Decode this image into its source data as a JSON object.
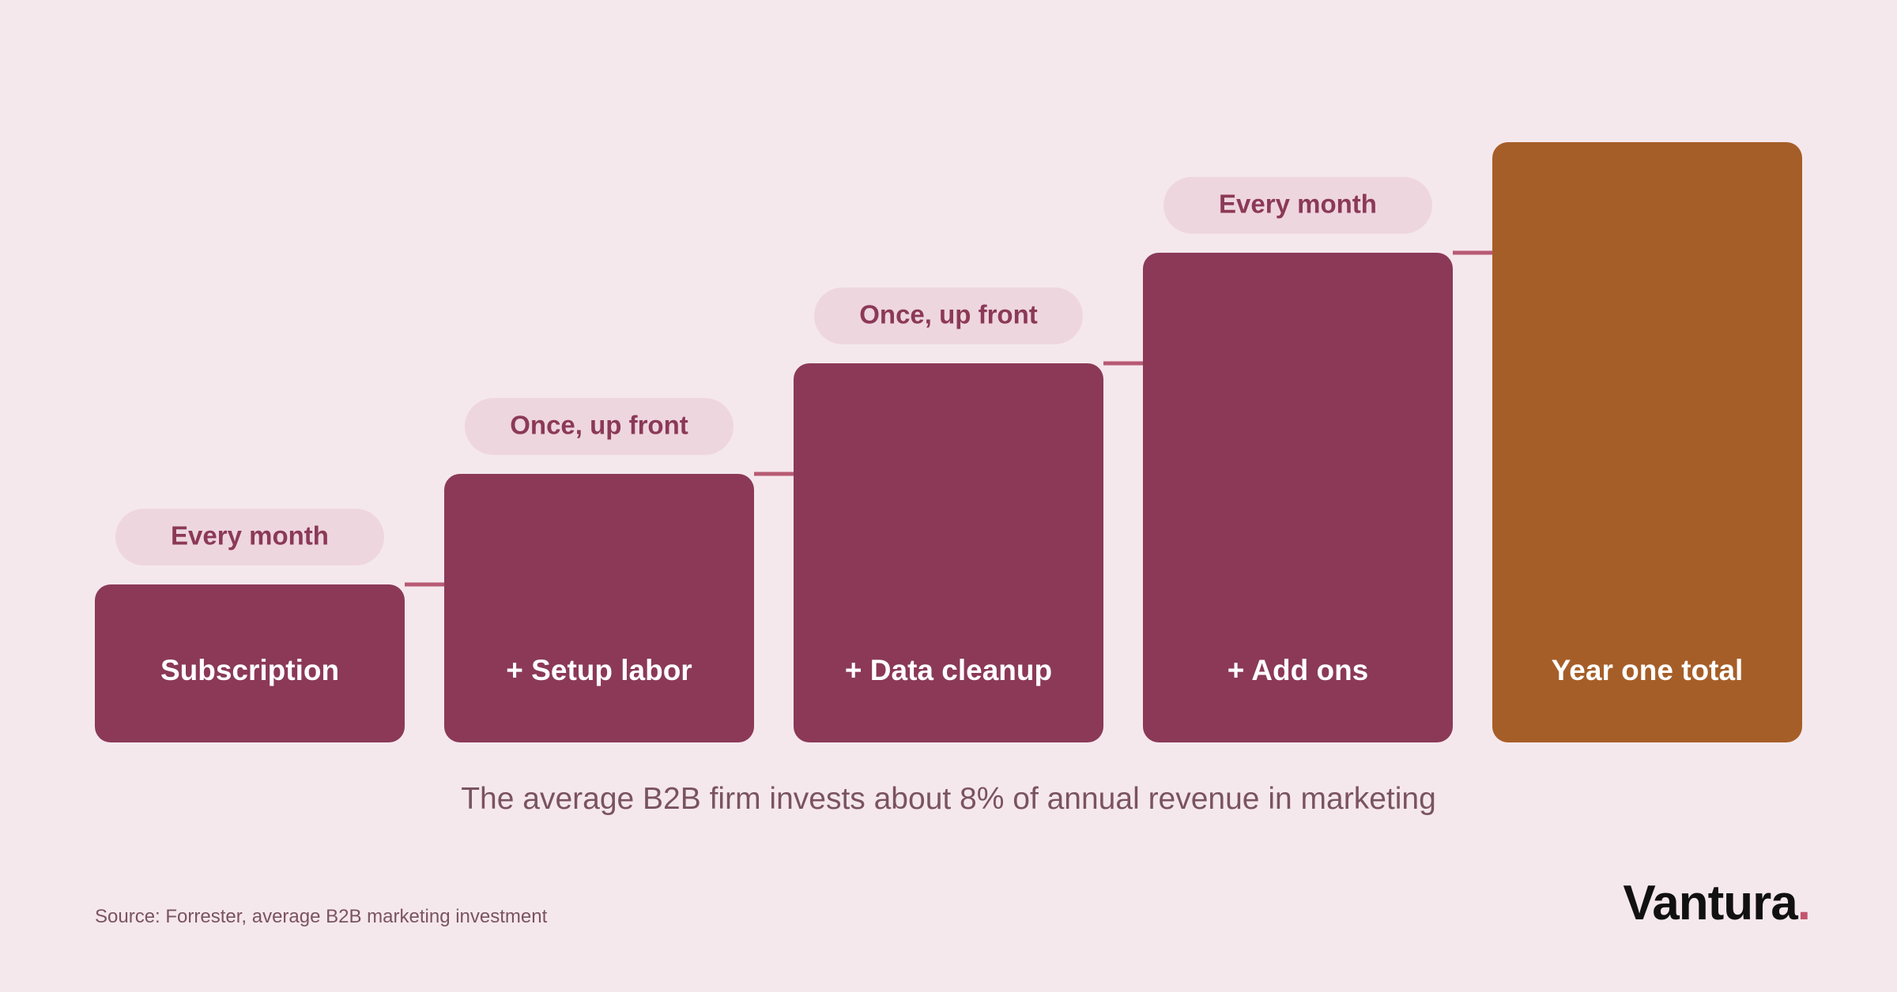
{
  "chart_data": {
    "type": "bar",
    "subtype": "stepped-waterfall",
    "categories": [
      "Subscription",
      "+ Setup labor",
      "+ Data cleanup",
      "+ Add ons",
      "Year one total"
    ],
    "tags": [
      "Every month",
      "Once, up front",
      "Once, up front",
      "Every month",
      ""
    ],
    "values": [
      1,
      2,
      3,
      4,
      5
    ],
    "relative_scale": true,
    "connectors": true
  },
  "caption": "The average B2B firm invests about 8% of annual revenue in marketing",
  "source": "Source: Forrester, average B2B marketing investment",
  "brand": {
    "name": "Vantura",
    "dot": "."
  },
  "colors": {
    "background": "#f5e8ec",
    "bar": "#8b3957",
    "total_bar": "#a65e28",
    "tag_bg": "#eed6de",
    "tag_text": "#8b3957",
    "connector": "#b85a74",
    "bar_label": "#ffffff",
    "caption": "#7a5361",
    "brand_dot": "#c2566f"
  }
}
